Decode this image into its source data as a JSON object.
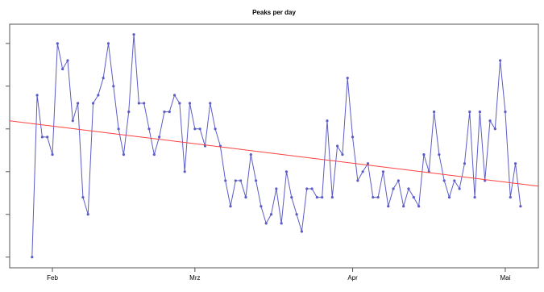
{
  "chart_data": {
    "type": "line",
    "title": "Peaks per day",
    "x": [
      -4,
      -3,
      -2,
      -1,
      0,
      1,
      2,
      3,
      4,
      5,
      6,
      7,
      8,
      9,
      10,
      11,
      12,
      13,
      14,
      15,
      16,
      17,
      18,
      19,
      20,
      21,
      22,
      23,
      24,
      25,
      26,
      27,
      28,
      29,
      30,
      31,
      32,
      33,
      34,
      35,
      36,
      37,
      38,
      39,
      40,
      41,
      42,
      43,
      44,
      45,
      46,
      47,
      48,
      49,
      50,
      51,
      52,
      53,
      54,
      55,
      56,
      57,
      58,
      59,
      60,
      61,
      62,
      63,
      64,
      65,
      66,
      67,
      68,
      69,
      70,
      71,
      72,
      73,
      74,
      75,
      76,
      77,
      78,
      79,
      80,
      81,
      82,
      83,
      84,
      85,
      86,
      87,
      88,
      89,
      90,
      91,
      92
    ],
    "series": [
      {
        "color": "#5c5cc8",
        "values": [
          0,
          3.79,
          2.81,
          2.81,
          2.4,
          5,
          4.4,
          4.6,
          3.19,
          3.6,
          1.4,
          1,
          3.6,
          3.79,
          4.19,
          5,
          4,
          3,
          2.4,
          3.4,
          5.21,
          3.6,
          3.6,
          3,
          2.4,
          2.81,
          3.4,
          3.4,
          3.79,
          3.6,
          2,
          3.6,
          3,
          3,
          2.6,
          3.6,
          3,
          2.6,
          1.79,
          1.19,
          1.79,
          1.79,
          1.4,
          2.4,
          1.79,
          1.19,
          0.79,
          1,
          1.6,
          0.79,
          2,
          1.4,
          1,
          0.6,
          1.6,
          1.6,
          1.4,
          1.4,
          3.19,
          1.4,
          2.6,
          2.4,
          4.19,
          2.81,
          1.79,
          2,
          2.19,
          1.4,
          1.4,
          2,
          1.19,
          1.6,
          1.79,
          1.19,
          1.6,
          1.4,
          1.19,
          2.4,
          2,
          3.4,
          2.4,
          1.79,
          1.4,
          1.79,
          1.6,
          2.19,
          3.4,
          1.4,
          3.4,
          1.79,
          3.19,
          3,
          4.6,
          3.4,
          1.4,
          2.19,
          1.19
        ]
      }
    ],
    "trend": {
      "x": [
        -8.4,
        95.5
      ],
      "values": [
        3.19,
        1.66
      ],
      "color": "#ff4040"
    },
    "xlim": [
      -8.4,
      95.5
    ],
    "ylim": [
      -0.25,
      5.45
    ],
    "xticks": [
      {
        "value": 0,
        "label": "Feb"
      },
      {
        "value": 28,
        "label": "Mrz"
      },
      {
        "value": 59,
        "label": "Apr"
      },
      {
        "value": 89,
        "label": "Mai"
      }
    ],
    "yticks": [
      0,
      1,
      2,
      3,
      4,
      5
    ]
  }
}
